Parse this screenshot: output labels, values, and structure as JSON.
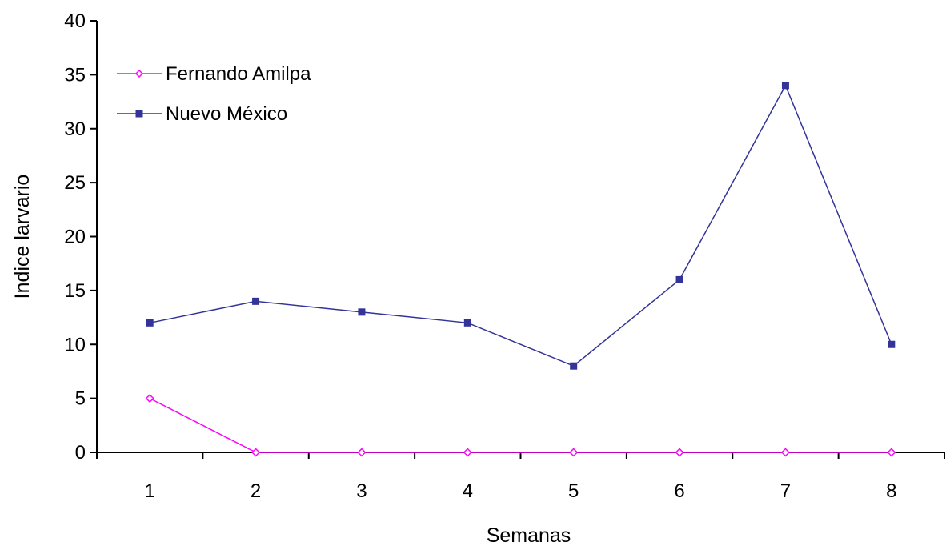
{
  "chart_data": {
    "type": "line",
    "title": "",
    "xlabel": "Semanas",
    "ylabel": "Indice larvario",
    "categories": [
      "1",
      "2",
      "3",
      "4",
      "5",
      "6",
      "7",
      "8"
    ],
    "ylim": [
      0,
      40
    ],
    "yticks": [
      0,
      5,
      10,
      15,
      20,
      25,
      30,
      35,
      40
    ],
    "grid": false,
    "legend_position": "top-left",
    "series": [
      {
        "name": "Fernando Amilpa",
        "values": [
          5,
          0,
          0,
          0,
          0,
          0,
          0,
          0
        ],
        "color": "#FF00FF",
        "marker": "diamond"
      },
      {
        "name": "Nuevo México",
        "values": [
          12,
          14,
          13,
          12,
          8,
          16,
          34,
          10
        ],
        "color": "#333399",
        "marker": "square"
      }
    ]
  }
}
